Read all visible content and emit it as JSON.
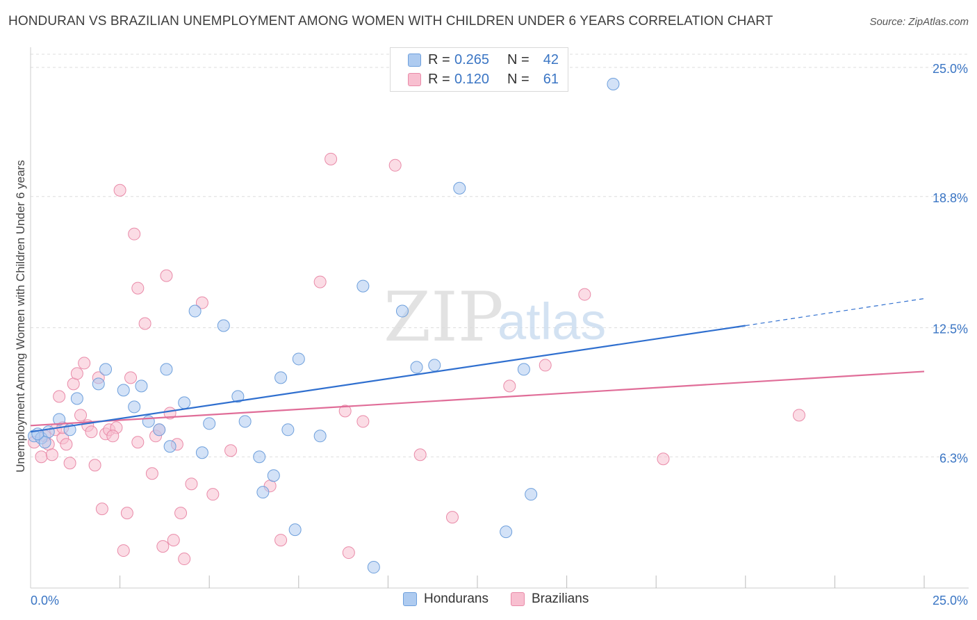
{
  "title": "HONDURAN VS BRAZILIAN UNEMPLOYMENT AMONG WOMEN WITH CHILDREN UNDER 6 YEARS CORRELATION CHART",
  "source": "Source: ZipAtlas.com",
  "watermark": {
    "zip": "ZIP",
    "atlas": "atlas"
  },
  "legend_top": [
    {
      "r_label": "R =",
      "r_value": "0.265",
      "n_label": "N =",
      "n_value": "42"
    },
    {
      "r_label": "R =",
      "r_value": "0.120",
      "n_label": "N =",
      "n_value": "61"
    }
  ],
  "legend_bottom": [
    "Hondurans",
    "Brazilians"
  ],
  "colors": {
    "hondurans_fill": "#aecbf0",
    "hondurans_stroke": "#6d9fdc",
    "hondurans_line": "#2f6fcf",
    "brazilians_fill": "#f8bfd0",
    "brazilians_stroke": "#e98aa8",
    "brazilians_line": "#e06d98",
    "tick_label": "#3a75c4",
    "grid": "#dddddd"
  },
  "chart_data": {
    "type": "scatter",
    "title": "HONDURAN VS BRAZILIAN UNEMPLOYMENT AMONG WOMEN WITH CHILDREN UNDER 6 YEARS CORRELATION CHART",
    "xlabel": "",
    "ylabel": "Unemployment Among Women with Children Under 6 years",
    "xlim": [
      0,
      25
    ],
    "ylim": [
      0,
      25
    ],
    "x_tick_labels": [
      "0.0%",
      "25.0%"
    ],
    "y_tick_values": [
      6.3,
      12.5,
      18.8,
      25.0
    ],
    "y_tick_labels": [
      "6.3%",
      "12.5%",
      "18.8%",
      "25.0%"
    ],
    "grid": true,
    "legend": "top-center",
    "series": [
      {
        "name": "Hondurans",
        "r": 0.265,
        "n": 42,
        "trend": {
          "x0": 0,
          "y0": 7.5,
          "x1": 20,
          "y1": 12.6,
          "dashed_to_x": 25,
          "dashed_to_y": 13.9
        },
        "points": [
          [
            0.1,
            7.3
          ],
          [
            0.3,
            7.2
          ],
          [
            0.5,
            7.5
          ],
          [
            0.8,
            8.1
          ],
          [
            0.4,
            7.0
          ],
          [
            1.1,
            7.6
          ],
          [
            1.3,
            9.1
          ],
          [
            1.9,
            9.8
          ],
          [
            2.1,
            10.5
          ],
          [
            2.6,
            9.5
          ],
          [
            2.9,
            8.7
          ],
          [
            3.1,
            9.7
          ],
          [
            3.3,
            8.0
          ],
          [
            3.6,
            7.6
          ],
          [
            3.8,
            10.5
          ],
          [
            3.9,
            6.8
          ],
          [
            4.3,
            8.9
          ],
          [
            4.6,
            13.3
          ],
          [
            4.8,
            6.5
          ],
          [
            5.0,
            7.9
          ],
          [
            5.4,
            12.6
          ],
          [
            5.8,
            9.2
          ],
          [
            6.0,
            8.0
          ],
          [
            6.4,
            6.3
          ],
          [
            6.5,
            4.6
          ],
          [
            6.8,
            5.4
          ],
          [
            7.0,
            10.1
          ],
          [
            7.2,
            7.6
          ],
          [
            7.4,
            2.8
          ],
          [
            7.5,
            11.0
          ],
          [
            8.1,
            7.3
          ],
          [
            9.3,
            14.5
          ],
          [
            9.6,
            1.0
          ],
          [
            10.4,
            13.3
          ],
          [
            10.8,
            10.6
          ],
          [
            11.3,
            10.7
          ],
          [
            12.0,
            19.2
          ],
          [
            13.3,
            2.7
          ],
          [
            13.8,
            10.5
          ],
          [
            14.0,
            4.5
          ],
          [
            16.3,
            24.2
          ],
          [
            0.2,
            7.4
          ]
        ]
      },
      {
        "name": "Brazilians",
        "r": 0.12,
        "n": 61,
        "trend": {
          "x0": 0,
          "y0": 7.8,
          "x1": 25,
          "y1": 10.4
        },
        "points": [
          [
            0.1,
            7.0
          ],
          [
            0.3,
            6.3
          ],
          [
            0.4,
            7.3
          ],
          [
            0.5,
            6.9
          ],
          [
            0.6,
            6.4
          ],
          [
            0.7,
            7.6
          ],
          [
            0.8,
            9.2
          ],
          [
            0.9,
            7.2
          ],
          [
            1.0,
            6.9
          ],
          [
            1.1,
            6.0
          ],
          [
            1.2,
            9.8
          ],
          [
            1.3,
            10.3
          ],
          [
            1.4,
            8.3
          ],
          [
            1.5,
            10.8
          ],
          [
            1.6,
            7.8
          ],
          [
            1.8,
            5.9
          ],
          [
            1.9,
            10.1
          ],
          [
            2.0,
            3.8
          ],
          [
            2.1,
            7.4
          ],
          [
            2.2,
            7.6
          ],
          [
            2.4,
            7.7
          ],
          [
            2.5,
            19.1
          ],
          [
            2.6,
            1.8
          ],
          [
            2.7,
            3.6
          ],
          [
            2.8,
            10.1
          ],
          [
            2.9,
            17.0
          ],
          [
            3.0,
            14.4
          ],
          [
            3.2,
            12.7
          ],
          [
            3.4,
            5.5
          ],
          [
            3.5,
            7.3
          ],
          [
            3.6,
            7.6
          ],
          [
            3.7,
            2.0
          ],
          [
            3.8,
            15.0
          ],
          [
            3.9,
            8.4
          ],
          [
            4.0,
            2.3
          ],
          [
            4.1,
            6.9
          ],
          [
            4.2,
            3.6
          ],
          [
            4.3,
            1.4
          ],
          [
            4.5,
            5.0
          ],
          [
            4.8,
            13.7
          ],
          [
            5.1,
            4.5
          ],
          [
            5.6,
            6.6
          ],
          [
            6.7,
            4.9
          ],
          [
            7.0,
            2.3
          ],
          [
            8.1,
            14.7
          ],
          [
            8.4,
            20.6
          ],
          [
            8.8,
            8.5
          ],
          [
            8.9,
            1.7
          ],
          [
            9.3,
            8.0
          ],
          [
            10.2,
            20.3
          ],
          [
            10.9,
            6.4
          ],
          [
            11.8,
            3.4
          ],
          [
            13.4,
            9.7
          ],
          [
            14.4,
            10.7
          ],
          [
            15.5,
            14.1
          ],
          [
            17.7,
            6.2
          ],
          [
            21.5,
            8.3
          ],
          [
            1.7,
            7.5
          ],
          [
            2.3,
            7.3
          ],
          [
            0.9,
            7.7
          ],
          [
            3.0,
            7.0
          ]
        ]
      }
    ]
  }
}
